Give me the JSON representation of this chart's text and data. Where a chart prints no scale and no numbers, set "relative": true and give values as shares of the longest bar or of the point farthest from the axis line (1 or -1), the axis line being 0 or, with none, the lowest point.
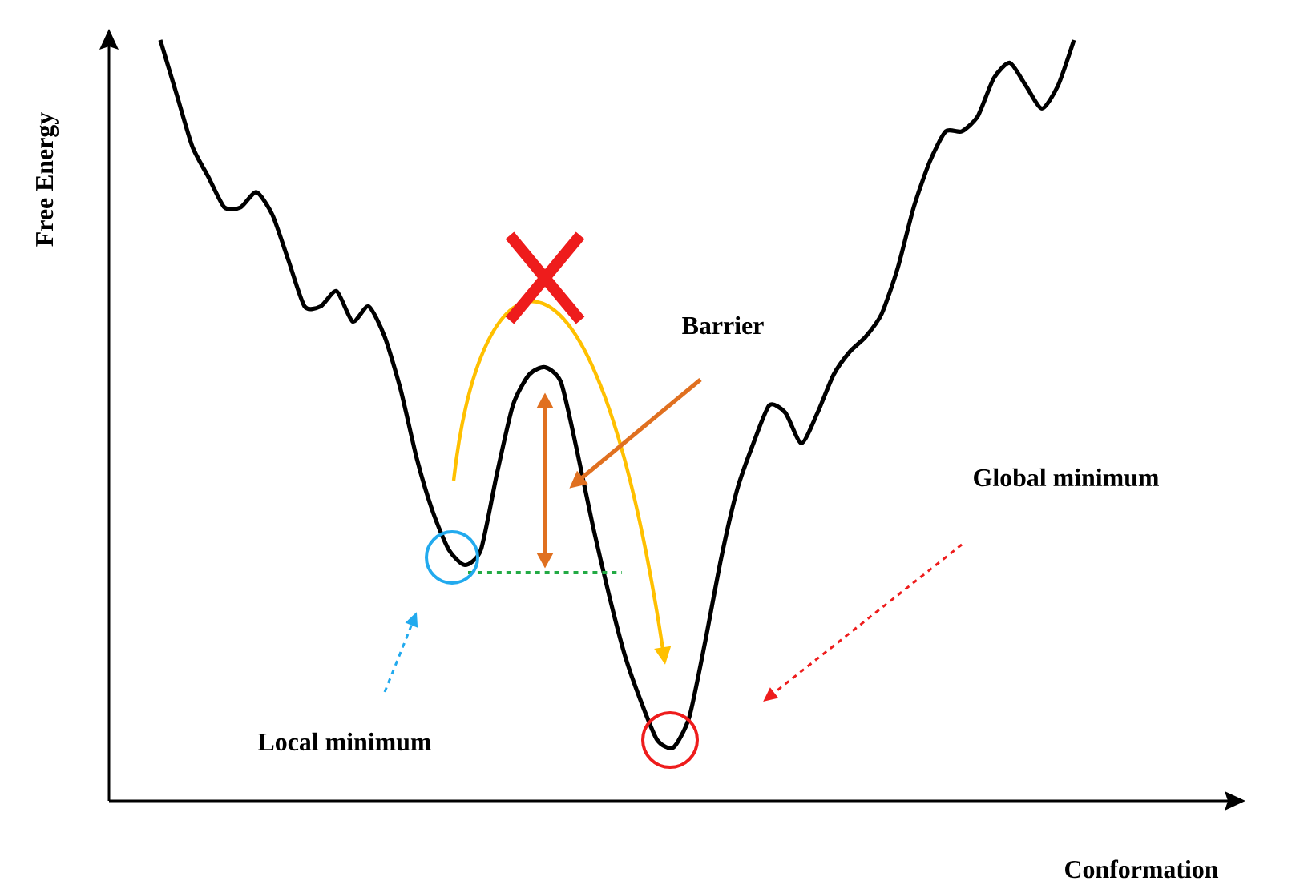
{
  "chart_data": {
    "type": "line",
    "xlabel": "Conformation",
    "ylabel": "Free Energy",
    "relative": true,
    "color": "#000000",
    "categories": [
      null,
      null,
      null,
      null,
      null,
      null,
      null,
      null,
      null,
      null,
      null,
      null,
      null,
      null,
      null,
      null,
      null,
      null,
      null,
      null,
      null,
      null,
      null,
      null,
      null,
      null,
      null,
      null,
      null,
      null,
      null,
      null,
      null,
      null,
      null,
      null,
      null,
      null,
      null,
      null,
      null,
      null,
      null,
      null,
      null,
      null,
      null,
      null,
      null,
      null,
      null,
      null,
      null,
      null,
      null,
      null,
      null,
      null
    ],
    "values": [
      1.0,
      0.93,
      0.86,
      0.82,
      0.78,
      0.78,
      0.8,
      0.77,
      0.71,
      0.65,
      0.65,
      0.67,
      0.63,
      0.65,
      0.61,
      0.54,
      0.45,
      0.38,
      0.33,
      0.31,
      0.33,
      0.43,
      0.52,
      0.56,
      0.57,
      0.55,
      0.46,
      0.36,
      0.27,
      0.19,
      0.13,
      0.08,
      0.07,
      0.11,
      0.21,
      0.32,
      0.41,
      0.47,
      0.52,
      0.51,
      0.47,
      0.51,
      0.56,
      0.59,
      0.61,
      0.64,
      0.7,
      0.78,
      0.84,
      0.88,
      0.88,
      0.9,
      0.95,
      0.97,
      0.94,
      0.91,
      0.94,
      1.0
    ],
    "ref_lines": [
      {
        "axis": "y",
        "value": 0.3,
        "color": "#22aa44",
        "line_style": "dashed"
      }
    ],
    "annotations": [
      "Barrier",
      "Global minimum",
      "Local minimum"
    ]
  }
}
